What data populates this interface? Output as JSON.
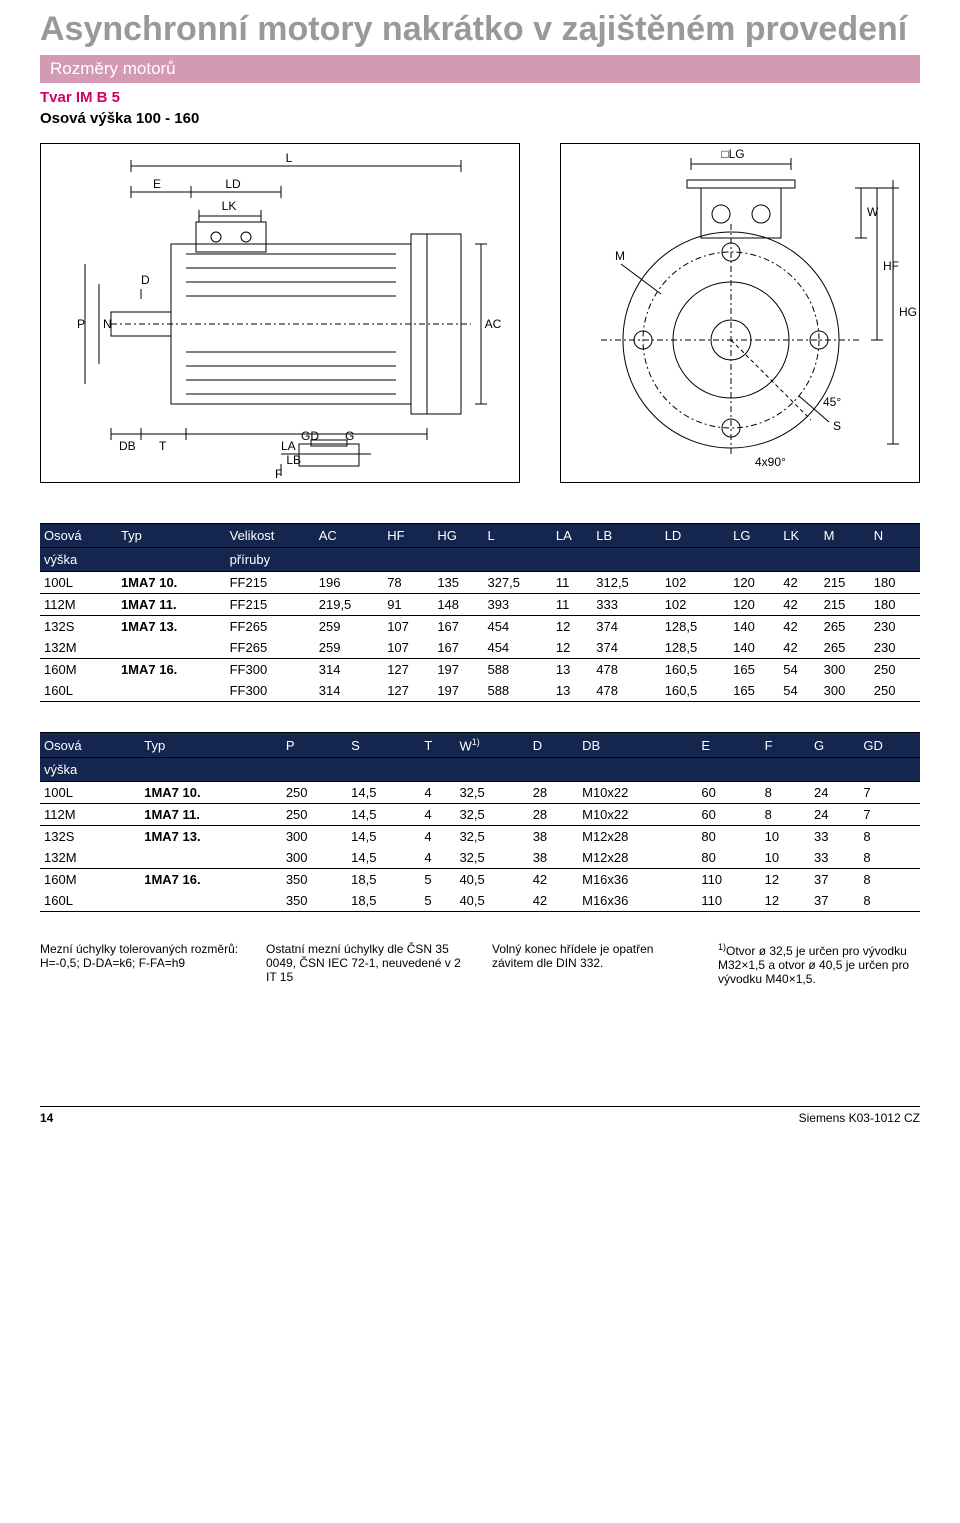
{
  "heading_main": "Asynchronní motory nakrátko v zajištěném provedení",
  "section_bar": "Rozměry motorů",
  "subheading": "Tvar IM B 5",
  "subheading2": "Osová výška 100 - 160",
  "diagram": {
    "left_labels": [
      "L",
      "E",
      "LD",
      "LK",
      "LA",
      "LB",
      "AC",
      "D",
      "P",
      "N",
      "DB",
      "T",
      "GD",
      "G",
      "F"
    ],
    "right_labels": [
      "LG",
      "W",
      "HF",
      "HG",
      "M",
      "S",
      "4x90°",
      "45°"
    ]
  },
  "table1": {
    "columns": [
      "Osová výška",
      "Typ",
      "Velikost příruby",
      "AC",
      "HF",
      "HG",
      "L",
      "LA",
      "LB",
      "LD",
      "LG",
      "LK",
      "M",
      "N"
    ],
    "header_row1": [
      "Osová",
      "Typ",
      "Velikost",
      "AC",
      "HF",
      "HG",
      "L",
      "LA",
      "LB",
      "LD",
      "LG",
      "LK",
      "M",
      "N"
    ],
    "header_row2": [
      "výška",
      "",
      "příruby",
      "",
      "",
      "",
      "",
      "",
      "",
      "",
      "",
      "",
      "",
      ""
    ],
    "groups": [
      {
        "rows": [
          [
            "100L",
            "1MA7 10.",
            "FF215",
            "196",
            "78",
            "135",
            "327,5",
            "11",
            "312,5",
            "102",
            "120",
            "42",
            "215",
            "180"
          ]
        ]
      },
      {
        "rows": [
          [
            "112M",
            "1MA7 11.",
            "FF215",
            "219,5",
            "91",
            "148",
            "393",
            "11",
            "333",
            "102",
            "120",
            "42",
            "215",
            "180"
          ]
        ]
      },
      {
        "rows": [
          [
            "132S",
            "1MA7 13.",
            "FF265",
            "259",
            "107",
            "167",
            "454",
            "12",
            "374",
            "128,5",
            "140",
            "42",
            "265",
            "230"
          ],
          [
            "132M",
            "",
            "FF265",
            "259",
            "107",
            "167",
            "454",
            "12",
            "374",
            "128,5",
            "140",
            "42",
            "265",
            "230"
          ]
        ]
      },
      {
        "rows": [
          [
            "160M",
            "1MA7 16.",
            "FF300",
            "314",
            "127",
            "197",
            "588",
            "13",
            "478",
            "160,5",
            "165",
            "54",
            "300",
            "250"
          ],
          [
            "160L",
            "",
            "FF300",
            "314",
            "127",
            "197",
            "588",
            "13",
            "478",
            "160,5",
            "165",
            "54",
            "300",
            "250"
          ]
        ]
      }
    ]
  },
  "table2": {
    "header_row1": [
      "Osová",
      "Typ",
      "P",
      "S",
      "T",
      "W",
      "D",
      "DB",
      "E",
      "F",
      "G",
      "GD"
    ],
    "header_row2": [
      "výška",
      "",
      "",
      "",
      "",
      "",
      "",
      "",
      "",
      "",
      "",
      ""
    ],
    "w_sup": "1)",
    "groups": [
      {
        "rows": [
          [
            "100L",
            "1MA7 10.",
            "250",
            "14,5",
            "4",
            "32,5",
            "28",
            "M10x22",
            "60",
            "8",
            "24",
            "7"
          ]
        ]
      },
      {
        "rows": [
          [
            "112M",
            "1MA7 11.",
            "250",
            "14,5",
            "4",
            "32,5",
            "28",
            "M10x22",
            "60",
            "8",
            "24",
            "7"
          ]
        ]
      },
      {
        "rows": [
          [
            "132S",
            "1MA7 13.",
            "300",
            "14,5",
            "4",
            "32,5",
            "38",
            "M12x28",
            "80",
            "10",
            "33",
            "8"
          ],
          [
            "132M",
            "",
            "300",
            "14,5",
            "4",
            "32,5",
            "38",
            "M12x28",
            "80",
            "10",
            "33",
            "8"
          ]
        ]
      },
      {
        "rows": [
          [
            "160M",
            "1MA7 16.",
            "350",
            "18,5",
            "5",
            "40,5",
            "42",
            "M16x36",
            "110",
            "12",
            "37",
            "8"
          ],
          [
            "160L",
            "",
            "350",
            "18,5",
            "5",
            "40,5",
            "42",
            "M16x36",
            "110",
            "12",
            "37",
            "8"
          ]
        ]
      }
    ]
  },
  "footnotes": {
    "col1": "Mezní úchylky tolerovaných rozměrů: H=-0,5; D-DA=k6; F-FA=h9",
    "col2": "Ostatní mezní úchylky dle ČSN 35 0049, ČSN IEC 72-1, neuvedené v 2 IT 15",
    "col3": "Volný konec hřídele je opatřen závitem dle DIN 332.",
    "col4_pre": "1)",
    "col4": "Otvor ø 32,5 je určen pro vývodku M32×1,5 a otvor ø 40,5 je určen pro vývodku M40×1,5."
  },
  "footer": {
    "page": "14",
    "doc": "Siemens K03-1012 CZ"
  },
  "colors": {
    "heading_gray": "#999999",
    "section_bar_bg": "#d499b3",
    "section_bar_text": "#ffffff",
    "magenta": "#d10064",
    "table_header_bg": "#14254e",
    "table_header_text": "#ffffff",
    "body_text": "#000000",
    "background": "#ffffff"
  }
}
